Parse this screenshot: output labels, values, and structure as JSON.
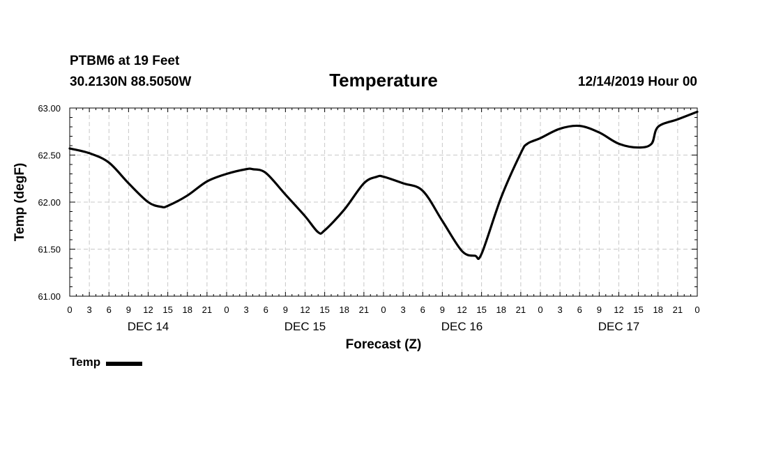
{
  "header": {
    "station": "PTBM6 at 19 Feet",
    "coords": "30.2130N 88.5050W",
    "title": "Temperature",
    "issued": "12/14/2019 Hour 00"
  },
  "legend": {
    "label": "Temp"
  },
  "chart_data": {
    "type": "line",
    "title": "Temperature",
    "xlabel": "Forecast (Z)",
    "ylabel": "Temp (degF)",
    "ylim": [
      61.0,
      63.0
    ],
    "xlim": [
      0,
      96
    ],
    "yticks": [
      "61.00",
      "61.50",
      "62.00",
      "62.50",
      "63.00"
    ],
    "xtick_hours": [
      0,
      3,
      6,
      9,
      12,
      15,
      18,
      21,
      24,
      27,
      30,
      33,
      36,
      39,
      42,
      45,
      48,
      51,
      54,
      57,
      60,
      63,
      66,
      69,
      72,
      75,
      78,
      81,
      84,
      87,
      90,
      93,
      96
    ],
    "xtick_labels": [
      "0",
      "3",
      "6",
      "9",
      "12",
      "15",
      "18",
      "21",
      "0",
      "3",
      "6",
      "9",
      "12",
      "15",
      "18",
      "21",
      "0",
      "3",
      "6",
      "9",
      "12",
      "15",
      "18",
      "21",
      "0",
      "3",
      "6",
      "9",
      "12",
      "15",
      "18",
      "21",
      "0"
    ],
    "day_labels": [
      {
        "hour": 12,
        "label": "DEC 14"
      },
      {
        "hour": 36,
        "label": "DEC 15"
      },
      {
        "hour": 60,
        "label": "DEC 16"
      },
      {
        "hour": 84,
        "label": "DEC 17"
      }
    ],
    "grid": true,
    "legend_position": "bottom-left",
    "series": [
      {
        "name": "Temp",
        "color": "#000000",
        "x": [
          0,
          3,
          6,
          9,
          12,
          14,
          15,
          18,
          21,
          24,
          27,
          28,
          30,
          33,
          36,
          38,
          39,
          42,
          45,
          47,
          48,
          51,
          54,
          57,
          60,
          62,
          63,
          66,
          69,
          70,
          72,
          75,
          78,
          81,
          84,
          87,
          89,
          90,
          93,
          96
        ],
        "y": [
          62.57,
          62.52,
          62.42,
          62.2,
          62.0,
          61.95,
          61.96,
          62.07,
          62.22,
          62.3,
          62.35,
          62.35,
          62.31,
          62.08,
          61.85,
          61.68,
          61.7,
          61.92,
          62.2,
          62.27,
          62.27,
          62.2,
          62.12,
          61.8,
          61.48,
          61.43,
          61.45,
          62.05,
          62.52,
          62.62,
          62.68,
          62.78,
          62.81,
          62.74,
          62.62,
          62.58,
          62.62,
          62.8,
          62.88,
          62.96
        ]
      }
    ]
  }
}
